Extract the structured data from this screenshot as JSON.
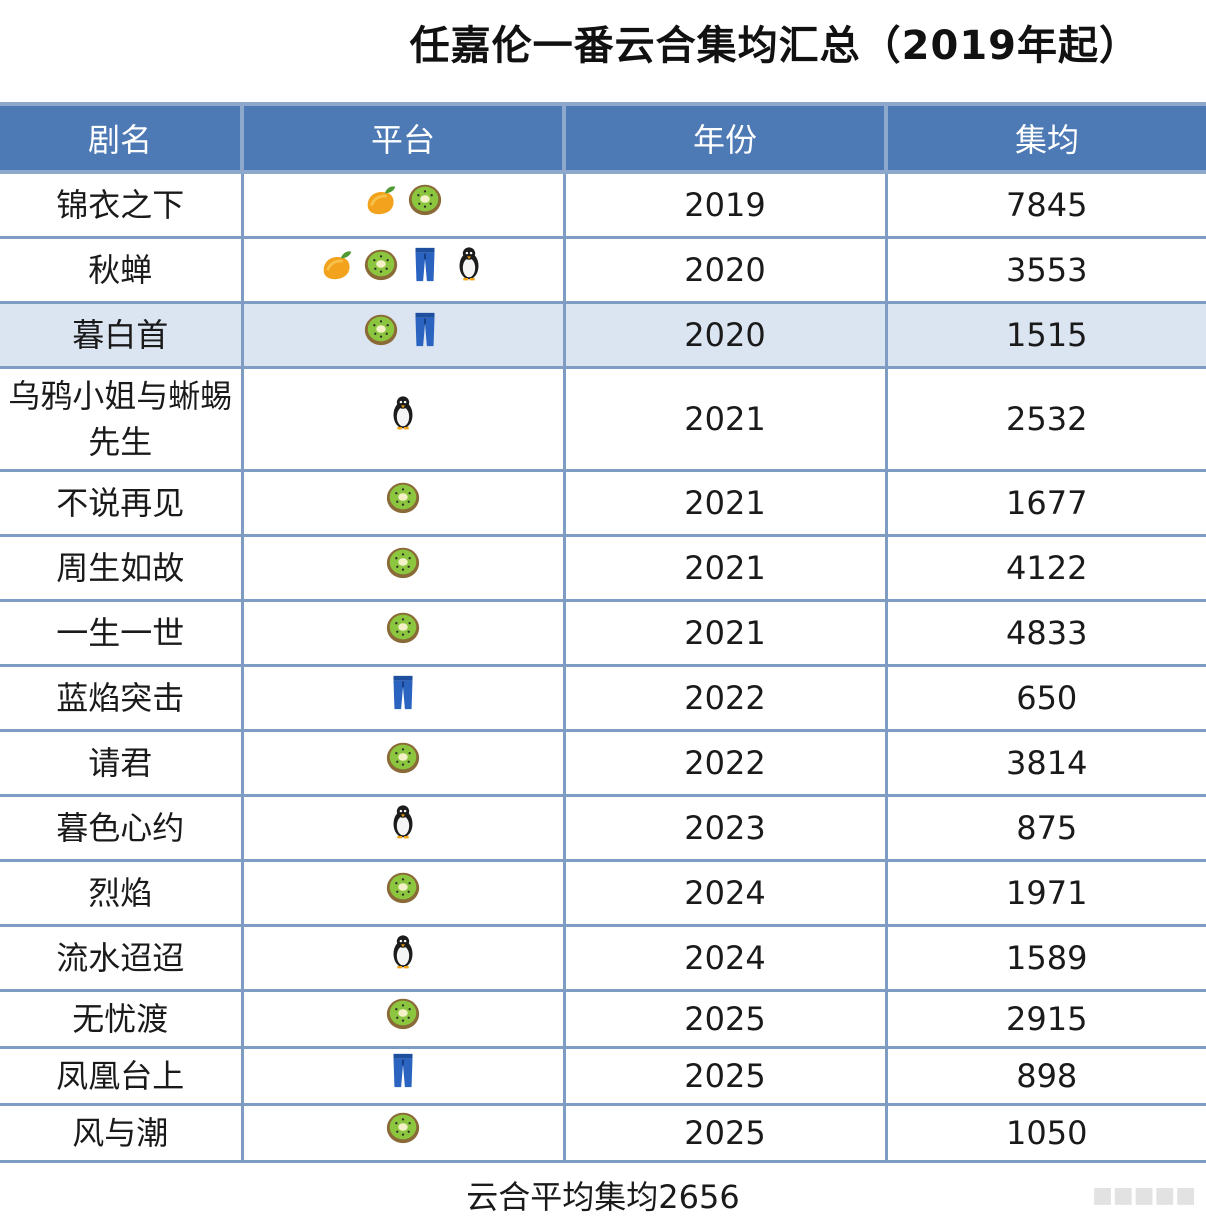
{
  "title": "任嘉伦一番云合集均汇总（2019年起）",
  "columns": [
    "剧名",
    "平台",
    "年份",
    "集均"
  ],
  "rows": [
    {
      "name": "锦衣之下",
      "platforms": [
        "mango",
        "kiwi"
      ],
      "year": "2019",
      "avg": "7845"
    },
    {
      "name": "秋蝉",
      "platforms": [
        "mango",
        "kiwi",
        "jeans",
        "penguin"
      ],
      "year": "2020",
      "avg": "3553"
    },
    {
      "name": "暮白首",
      "platforms": [
        "kiwi",
        "jeans"
      ],
      "year": "2020",
      "avg": "1515"
    },
    {
      "name": "乌鸦小姐与蜥蜴先生",
      "platforms": [
        "penguin"
      ],
      "year": "2021",
      "avg": "2532"
    },
    {
      "name": "不说再见",
      "platforms": [
        "kiwi"
      ],
      "year": "2021",
      "avg": "1677"
    },
    {
      "name": "周生如故",
      "platforms": [
        "kiwi"
      ],
      "year": "2021",
      "avg": "4122"
    },
    {
      "name": "一生一世",
      "platforms": [
        "kiwi"
      ],
      "year": "2021",
      "avg": "4833"
    },
    {
      "name": "蓝焰突击",
      "platforms": [
        "jeans"
      ],
      "year": "2022",
      "avg": "650"
    },
    {
      "name": "请君",
      "platforms": [
        "kiwi"
      ],
      "year": "2022",
      "avg": "3814"
    },
    {
      "name": "暮色心约",
      "platforms": [
        "penguin"
      ],
      "year": "2023",
      "avg": "875"
    },
    {
      "name": "烈焰",
      "platforms": [
        "kiwi"
      ],
      "year": "2024",
      "avg": "1971"
    },
    {
      "name": "流水迢迢",
      "platforms": [
        "penguin"
      ],
      "year": "2024",
      "avg": "1589"
    },
    {
      "name": "无忧渡",
      "platforms": [
        "kiwi"
      ],
      "year": "2025",
      "avg": "2915"
    },
    {
      "name": "凤凰台上",
      "platforms": [
        "jeans"
      ],
      "year": "2025",
      "avg": "898"
    },
    {
      "name": "风与潮",
      "platforms": [
        "kiwi"
      ],
      "year": "2025",
      "avg": "1050"
    }
  ],
  "footer": "云合平均集均2656",
  "colors": {
    "header_bg": "#4d79b5",
    "grid": "#7f9cc4",
    "highlight_row": "#dbe4f1"
  }
}
